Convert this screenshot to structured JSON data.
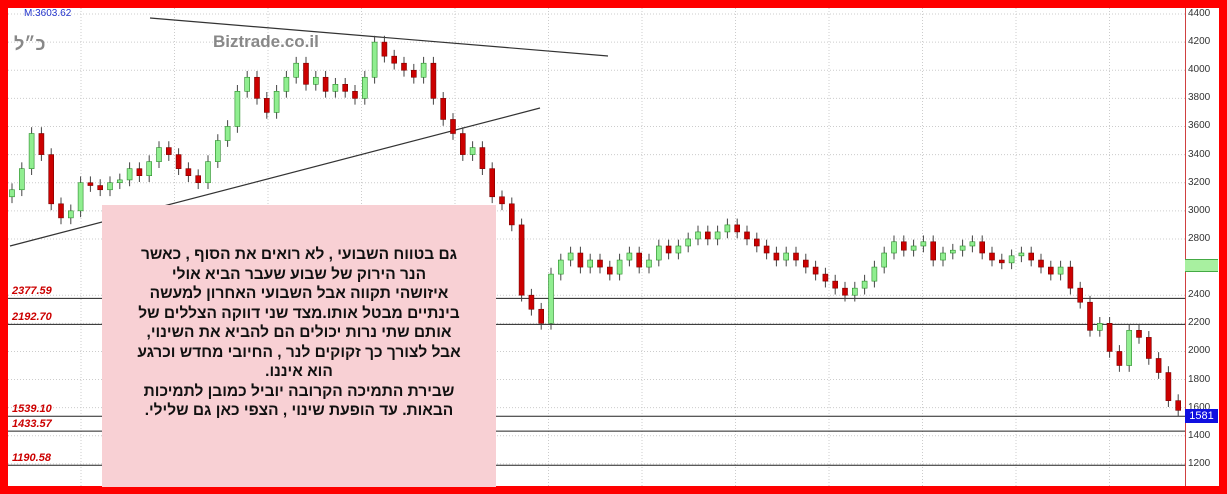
{
  "header": {
    "m_label": "M:3603.62",
    "hebrew_tag": "כ״ל",
    "brand": "Biztrade.co.il"
  },
  "colors": {
    "up": "#90ee90",
    "down": "#cc0000",
    "frame": "#ff0000",
    "note_bg": "#f8d0d4",
    "last_price_bg": "#1010e0"
  },
  "chart_data": {
    "type": "candlestick",
    "ylim": [
      1150,
      4450
    ],
    "y_ticks": [
      4400,
      4200,
      4000,
      3800,
      3600,
      3400,
      3200,
      3000,
      2800,
      2400,
      2200,
      2000,
      1800,
      1600,
      1400,
      1200
    ],
    "grid": true,
    "closes": [
      3150,
      3300,
      3550,
      3400,
      3050,
      2950,
      3000,
      3200,
      3180,
      3150,
      3200,
      3220,
      3300,
      3250,
      3350,
      3450,
      3400,
      3300,
      3250,
      3200,
      3350,
      3500,
      3600,
      3850,
      3950,
      3800,
      3700,
      3850,
      3950,
      4050,
      3900,
      3950,
      3850,
      3900,
      3850,
      3800,
      3950,
      4200,
      4100,
      4050,
      4000,
      3950,
      4050,
      3800,
      3650,
      3550,
      3400,
      3450,
      3300,
      3100,
      3050,
      2900,
      2400,
      2300,
      2200,
      2550,
      2650,
      2700,
      2600,
      2650,
      2600,
      2550,
      2650,
      2700,
      2600,
      2650,
      2750,
      2700,
      2750,
      2800,
      2850,
      2800,
      2850,
      2900,
      2850,
      2800,
      2750,
      2700,
      2650,
      2700,
      2650,
      2600,
      2550,
      2500,
      2450,
      2400,
      2450,
      2500,
      2600,
      2700,
      2780,
      2720,
      2750,
      2780,
      2650,
      2700,
      2720,
      2750,
      2780,
      2700,
      2650,
      2630,
      2680,
      2700,
      2650,
      2600,
      2550,
      2600,
      2450,
      2350,
      2150,
      2200,
      2000,
      1900,
      2150,
      2100,
      1950,
      1850,
      1650,
      1581
    ],
    "levels": [
      "2377.59",
      "2192.70",
      "1539.10",
      "1433.57",
      "1190.58"
    ],
    "last_price": "1581",
    "highlight_band": [
      2580,
      2660
    ]
  },
  "note": {
    "lines": [
      "גם בטווח השבועי , לא רואים את הסוף , כאשר",
      "הנר הירוק של שבוע שעבר הביא אולי",
      "איזושהי תקווה אבל השבועי האחרון למעשה",
      "בינתיים מבטל אותו.מצד שני דווקה הצללים של",
      "אותם שתי נרות יכולים הם להביא את השינוי,",
      "אבל לצורך כך זקוקים לנר , החיובי מחדש וכרגע",
      "הוא איננו.",
      "שבירת התמיכה הקרובה יוביל כמובן לתמיכות",
      "הבאות. עד הופעת שינוי , הצפי כאן גם שלילי."
    ]
  }
}
